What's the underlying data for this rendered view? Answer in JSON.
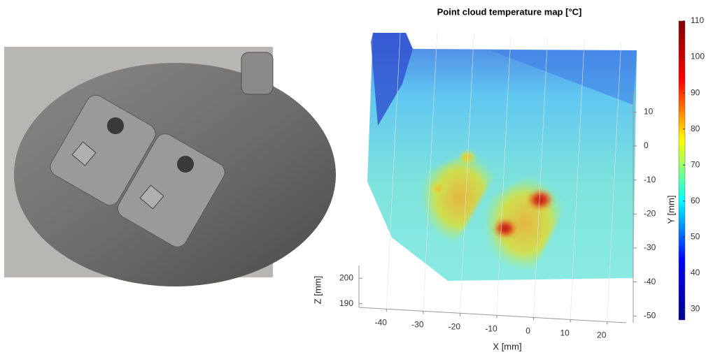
{
  "chart_data": {
    "type": "scatter3d",
    "title": "Point cloud temperature map [°C]",
    "x_label": "X [mm]",
    "y_label": "Y [mm]",
    "z_label": "Z [mm]",
    "xlim": [
      -45,
      25
    ],
    "xticks": [
      -40,
      -30,
      -20,
      -10,
      0,
      10,
      20
    ],
    "ylim": [
      -52,
      22
    ],
    "yticks": [
      10,
      0,
      -10,
      -20,
      -30,
      -40,
      -50
    ],
    "zlim": [
      185,
      205
    ],
    "zticks": [
      190,
      200
    ],
    "grid": true,
    "colorbar": {
      "colormap": "jet",
      "lim": [
        27,
        110
      ],
      "ticks": [
        30,
        40,
        50,
        60,
        70,
        80,
        90,
        100,
        110
      ]
    }
  }
}
